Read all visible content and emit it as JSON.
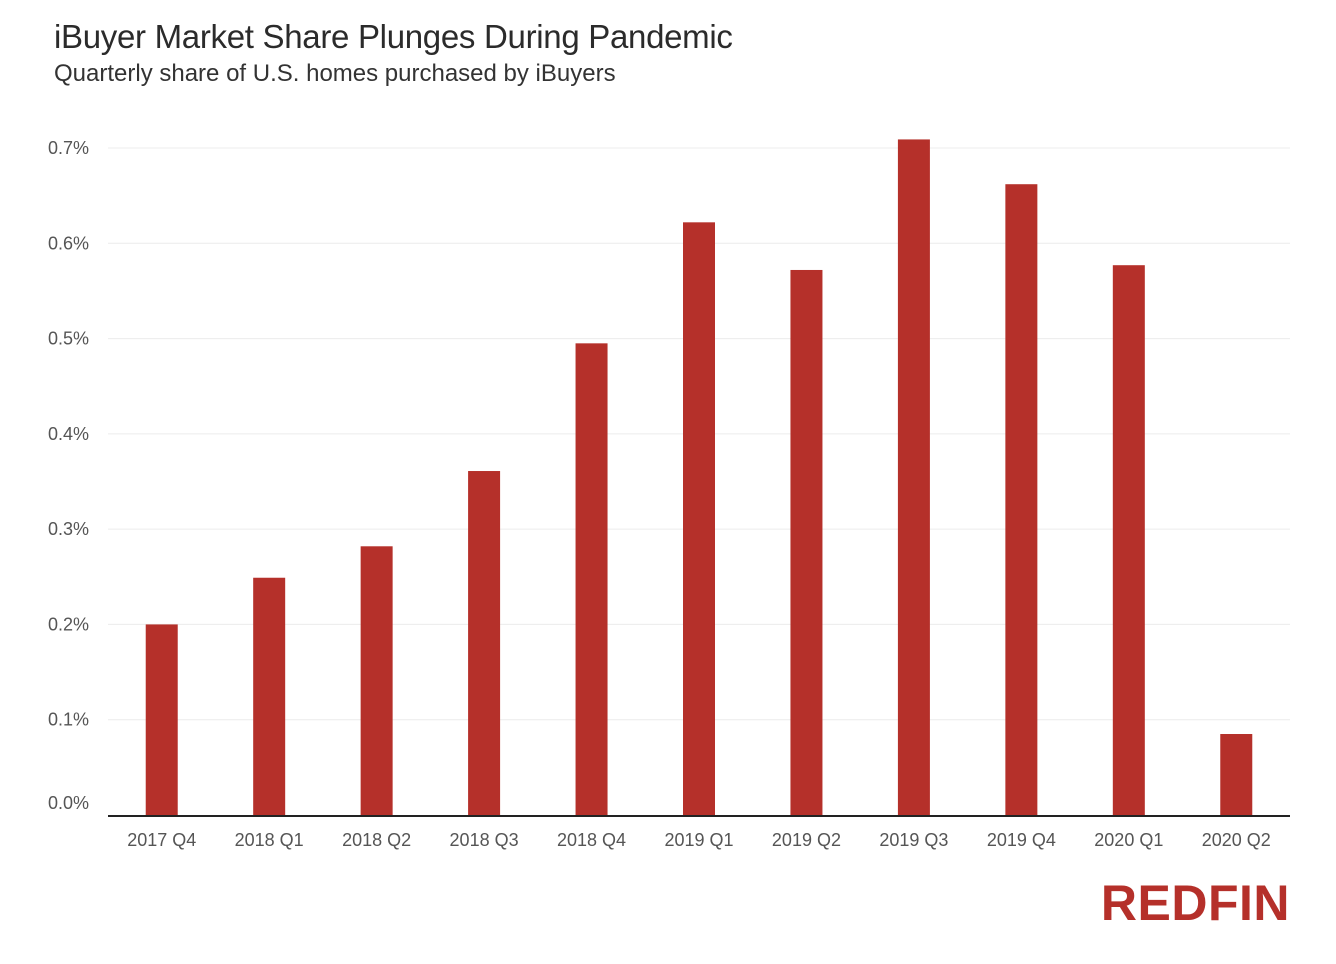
{
  "chart_data": {
    "type": "bar",
    "title": "iBuyer Market Share Plunges During Pandemic",
    "subtitle": "Quarterly share of U.S. homes purchased by iBuyers",
    "xlabel": "",
    "ylabel": "",
    "categories": [
      "2017 Q4",
      "2018 Q1",
      "2018 Q2",
      "2018 Q3",
      "2018 Q4",
      "2019 Q1",
      "2019 Q2",
      "2019 Q3",
      "2019 Q4",
      "2020 Q1",
      "2020 Q2"
    ],
    "values": [
      0.2,
      0.249,
      0.282,
      0.361,
      0.495,
      0.622,
      0.572,
      0.709,
      0.662,
      0.577,
      0.085
    ],
    "y_ticks": [
      0.0,
      0.1,
      0.2,
      0.3,
      0.4,
      0.5,
      0.6,
      0.7
    ],
    "y_tick_labels": [
      "0.0%",
      "0.1%",
      "0.2%",
      "0.3%",
      "0.4%",
      "0.5%",
      "0.6%",
      "0.7%"
    ],
    "ylim": [
      0,
      0.7
    ],
    "grid": true,
    "legend": "none",
    "bar_color": "#b5302a",
    "grid_color": "#ececec",
    "axis_color": "#222222"
  },
  "brand": {
    "logo_text": "REDFIN",
    "logo_color": "#b5302a"
  }
}
